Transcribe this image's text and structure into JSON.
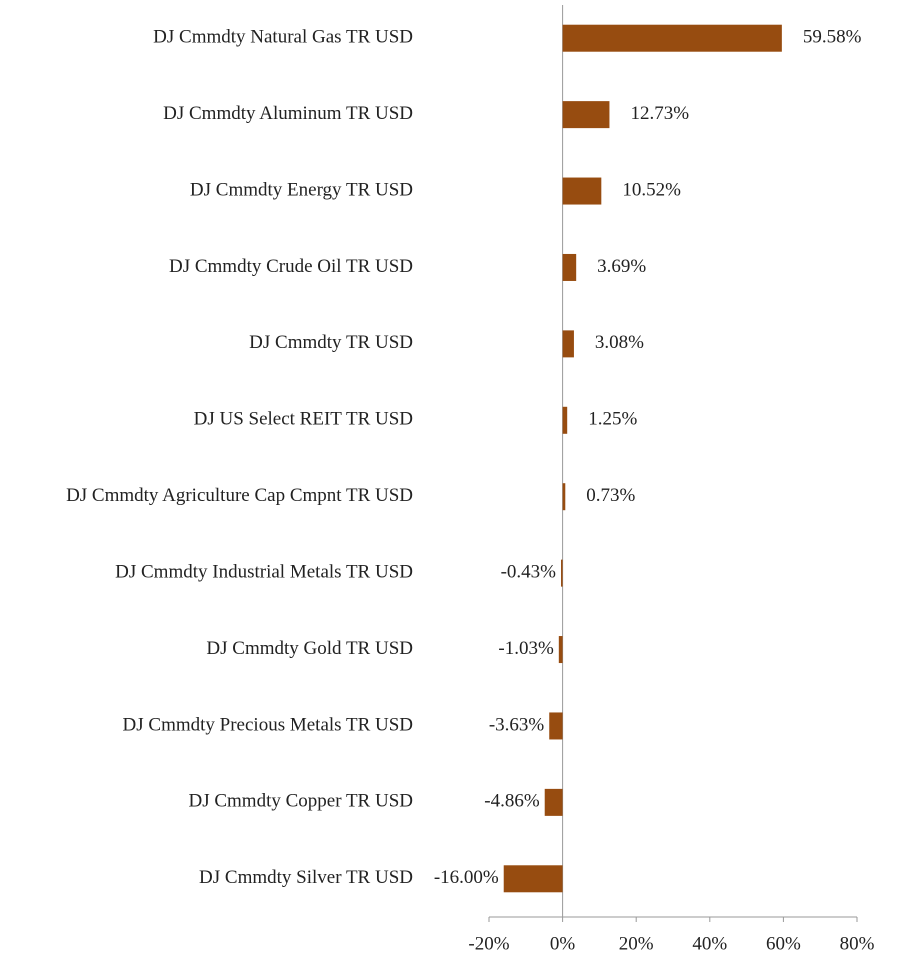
{
  "chart_data": {
    "type": "hbar",
    "categories": [
      "DJ Cmmdty Natural Gas TR USD",
      "DJ Cmmdty Aluminum TR USD",
      "DJ Cmmdty Energy TR USD",
      "DJ Cmmdty Crude Oil TR USD",
      "DJ Cmmdty TR USD",
      "DJ US Select REIT TR USD",
      "DJ Cmmdty Agriculture Cap Cmpnt TR USD",
      "DJ Cmmdty Industrial Metals TR USD",
      "DJ Cmmdty Gold TR USD",
      "DJ Cmmdty Precious Metals TR USD",
      "DJ Cmmdty Copper TR USD",
      "DJ Cmmdty Silver TR USD"
    ],
    "values": [
      59.58,
      12.73,
      10.52,
      3.69,
      3.08,
      1.25,
      0.73,
      -0.43,
      -1.03,
      -3.63,
      -4.86,
      -16.0
    ],
    "value_labels": [
      "59.58%",
      "12.73%",
      "10.52%",
      "3.69%",
      "3.08%",
      "1.25%",
      "0.73%",
      "-0.43%",
      "-1.03%",
      "-3.63%",
      "-4.86%",
      "-16.00%"
    ],
    "color": "#974c10",
    "xlim": [
      -20,
      80
    ],
    "xticks": [
      {
        "value": -20,
        "label": "-20%"
      },
      {
        "value": 0,
        "label": "0%"
      },
      {
        "value": 20,
        "label": "20%"
      },
      {
        "value": 40,
        "label": "40%"
      },
      {
        "value": 60,
        "label": "60%"
      },
      {
        "value": 80,
        "label": "80%"
      }
    ]
  }
}
